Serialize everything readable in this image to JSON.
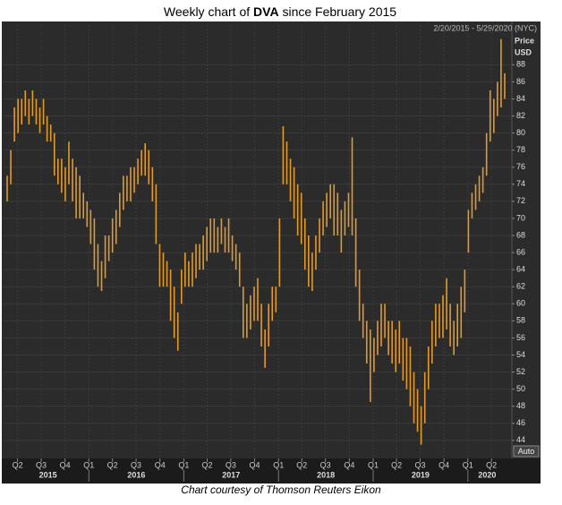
{
  "chart_data": {
    "type": "range-bar",
    "title": [
      "Weekly chart of ",
      "DVA",
      " since February 2015"
    ],
    "range_label": "2/20/2015 - 5/29/2020 (NYC)",
    "y_label": [
      "Price",
      "USD"
    ],
    "auto_button": "Auto",
    "footer": "Chart courtesy of Thomson Reuters Eikon",
    "color": "#e39a2d",
    "grid": true,
    "ylim": [
      42.2,
      91.6
    ],
    "yticks": [
      44,
      46,
      48,
      50,
      52,
      54,
      56,
      58,
      60,
      62,
      64,
      66,
      68,
      70,
      72,
      74,
      76,
      78,
      80,
      82,
      84,
      86,
      88
    ],
    "xlim": [
      "2015-02-20",
      "2020-05-29"
    ],
    "xticks": [
      {
        "value": "2015-04-01",
        "label": "Q2"
      },
      {
        "value": "2015-07-01",
        "label": "Q3"
      },
      {
        "value": "2015-10-01",
        "label": "Q4"
      },
      {
        "value": "2016-01-01",
        "label": "Q1"
      },
      {
        "value": "2016-04-01",
        "label": "Q2"
      },
      {
        "value": "2016-07-01",
        "label": "Q3"
      },
      {
        "value": "2016-10-01",
        "label": "Q4"
      },
      {
        "value": "2017-01-01",
        "label": "Q1"
      },
      {
        "value": "2017-04-01",
        "label": "Q2"
      },
      {
        "value": "2017-07-01",
        "label": "Q3"
      },
      {
        "value": "2017-10-01",
        "label": "Q4"
      },
      {
        "value": "2018-01-01",
        "label": "Q1"
      },
      {
        "value": "2018-04-01",
        "label": "Q2"
      },
      {
        "value": "2018-07-01",
        "label": "Q3"
      },
      {
        "value": "2018-10-01",
        "label": "Q4"
      },
      {
        "value": "2019-01-01",
        "label": "Q1"
      },
      {
        "value": "2019-04-01",
        "label": "Q2"
      },
      {
        "value": "2019-07-01",
        "label": "Q3"
      },
      {
        "value": "2019-10-01",
        "label": "Q4"
      },
      {
        "value": "2020-01-01",
        "label": "Q1"
      },
      {
        "value": "2020-04-01",
        "label": "Q2"
      }
    ],
    "years": [
      2015,
      2016,
      2017,
      2018,
      2019,
      2020
    ],
    "x": [
      "2015-02-20",
      "2015-03-06",
      "2015-03-20",
      "2015-04-03",
      "2015-04-17",
      "2015-05-01",
      "2015-05-15",
      "2015-05-29",
      "2015-06-12",
      "2015-06-26",
      "2015-07-10",
      "2015-07-24",
      "2015-08-07",
      "2015-08-21",
      "2015-09-04",
      "2015-09-18",
      "2015-10-02",
      "2015-10-16",
      "2015-10-30",
      "2015-11-13",
      "2015-11-27",
      "2015-12-11",
      "2015-12-25",
      "2016-01-08",
      "2016-01-22",
      "2016-02-05",
      "2016-02-19",
      "2016-03-04",
      "2016-03-18",
      "2016-04-01",
      "2016-04-15",
      "2016-04-29",
      "2016-05-13",
      "2016-05-27",
      "2016-06-10",
      "2016-06-24",
      "2016-07-08",
      "2016-07-22",
      "2016-08-05",
      "2016-08-19",
      "2016-09-02",
      "2016-09-16",
      "2016-09-30",
      "2016-10-14",
      "2016-10-28",
      "2016-11-11",
      "2016-11-25",
      "2016-12-09",
      "2016-12-23",
      "2017-01-06",
      "2017-01-20",
      "2017-02-03",
      "2017-02-17",
      "2017-03-03",
      "2017-03-17",
      "2017-03-31",
      "2017-04-14",
      "2017-04-28",
      "2017-05-12",
      "2017-05-26",
      "2017-06-09",
      "2017-06-23",
      "2017-07-07",
      "2017-07-21",
      "2017-08-04",
      "2017-08-18",
      "2017-09-01",
      "2017-09-15",
      "2017-09-29",
      "2017-10-13",
      "2017-10-27",
      "2017-11-10",
      "2017-11-24",
      "2017-12-08",
      "2017-12-22",
      "2018-01-05",
      "2018-01-19",
      "2018-02-02",
      "2018-02-16",
      "2018-03-02",
      "2018-03-16",
      "2018-03-30",
      "2018-04-13",
      "2018-04-27",
      "2018-05-11",
      "2018-05-25",
      "2018-06-08",
      "2018-06-22",
      "2018-07-06",
      "2018-07-20",
      "2018-08-03",
      "2018-08-17",
      "2018-08-31",
      "2018-09-14",
      "2018-09-28",
      "2018-10-12",
      "2018-10-26",
      "2018-11-09",
      "2018-11-23",
      "2018-12-07",
      "2018-12-21",
      "2019-01-04",
      "2019-01-18",
      "2019-02-01",
      "2019-02-15",
      "2019-03-01",
      "2019-03-15",
      "2019-03-29",
      "2019-04-12",
      "2019-04-26",
      "2019-05-10",
      "2019-05-24",
      "2019-06-07",
      "2019-06-21",
      "2019-07-05",
      "2019-07-19",
      "2019-08-02",
      "2019-08-16",
      "2019-08-30",
      "2019-09-13",
      "2019-09-27",
      "2019-10-11",
      "2019-10-25",
      "2019-11-08",
      "2019-11-22",
      "2019-12-06",
      "2019-12-20",
      "2020-01-03",
      "2020-01-17",
      "2020-01-31",
      "2020-02-14",
      "2020-02-28",
      "2020-03-13",
      "2020-03-27",
      "2020-04-10",
      "2020-04-24",
      "2020-05-08",
      "2020-05-22"
    ],
    "high": [
      75,
      78,
      83,
      84,
      84,
      85,
      84,
      85,
      84,
      83,
      84,
      82,
      81,
      80,
      77,
      77,
      76,
      79,
      77,
      76,
      75,
      73,
      72,
      71,
      70,
      67,
      65,
      68,
      68,
      70,
      71,
      73,
      75,
      75,
      76,
      76,
      77,
      78,
      78.8,
      78,
      76,
      74,
      67,
      66,
      65,
      64,
      62,
      59,
      64,
      66,
      65,
      66,
      67,
      67,
      68,
      69,
      70,
      70,
      69,
      70,
      69,
      70,
      68,
      67,
      66,
      62,
      60,
      61,
      62,
      63,
      60,
      57,
      60,
      62,
      62,
      70,
      80.8,
      79,
      77,
      76,
      74,
      73,
      70,
      68,
      66,
      68,
      70,
      72,
      73,
      74,
      74,
      73,
      71,
      72,
      73,
      79.5,
      70,
      64,
      60,
      58,
      57,
      56,
      58,
      60,
      60,
      58,
      58,
      57,
      58,
      56,
      56,
      55,
      52,
      50,
      48,
      52,
      55,
      58,
      60,
      60,
      61,
      63,
      60,
      58,
      60,
      62,
      64,
      71,
      73,
      74,
      75,
      76,
      80,
      85,
      84,
      86,
      91,
      87
    ],
    "low": [
      72,
      74,
      79,
      80,
      81,
      82,
      81,
      82,
      81,
      80,
      81,
      79,
      79,
      75,
      74,
      73,
      72,
      74,
      72,
      70,
      70,
      70,
      69,
      67,
      64,
      62,
      61.5,
      63,
      65,
      66,
      67,
      69,
      71,
      72,
      72,
      73,
      74,
      75,
      75,
      74,
      72,
      67,
      62,
      62,
      62,
      58,
      56,
      54.5,
      60,
      62,
      62,
      62,
      63,
      64,
      64,
      65,
      66,
      66,
      66,
      67,
      66,
      66,
      65,
      64,
      62,
      56,
      56,
      57,
      58,
      58,
      55,
      52.5,
      55,
      58,
      59,
      62,
      74,
      74,
      72,
      70,
      68,
      67,
      64,
      62,
      61.5,
      64,
      66,
      68,
      69,
      70,
      68,
      68,
      66,
      68,
      69,
      68,
      62,
      58,
      56,
      53,
      48.5,
      52,
      54,
      55,
      56,
      54,
      53,
      52,
      53,
      51,
      50,
      48,
      46,
      45,
      43.5,
      46,
      50,
      53,
      55,
      56,
      56,
      57,
      55,
      54,
      55,
      56,
      59,
      66,
      70,
      71,
      72,
      73,
      75,
      79,
      80,
      82,
      83,
      84
    ]
  }
}
